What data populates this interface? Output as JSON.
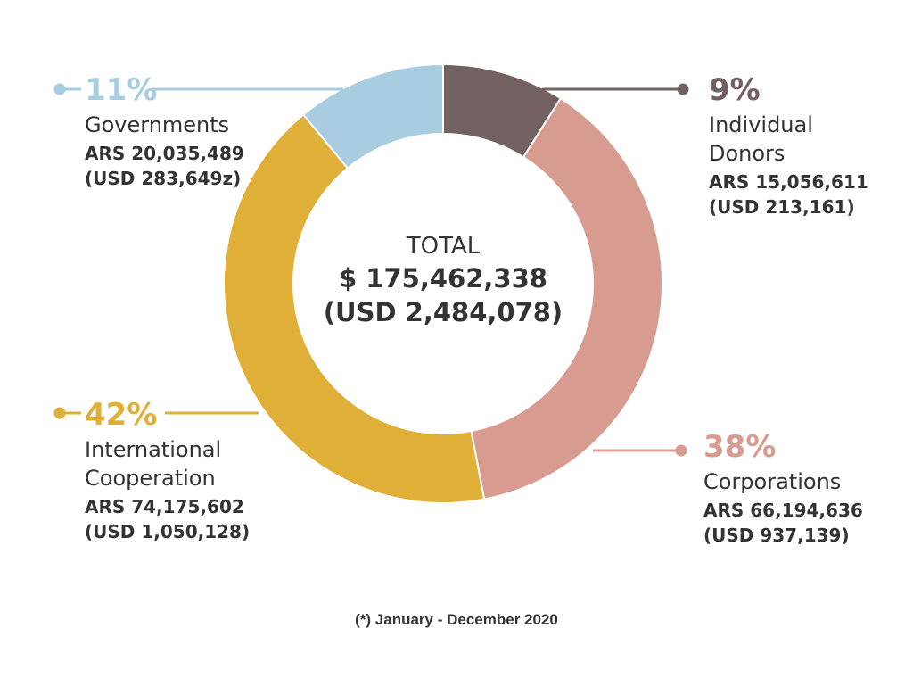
{
  "chart_data": {
    "type": "pie",
    "center": {
      "label": "TOTAL",
      "value": "$ 175,462,338",
      "value_usd": "(USD 2,484,078)"
    },
    "slices": [
      {
        "percent_label": "9%",
        "percent": 9,
        "category_lines": [
          "Individual",
          "Donors"
        ],
        "ars": "ARS 15,056,611",
        "usd": "(USD 213,161)",
        "color": "#736060"
      },
      {
        "percent_label": "38%",
        "percent": 38,
        "category_lines": [
          "Corporations"
        ],
        "ars": "ARS 66,194,636",
        "usd": "(USD 937,139)",
        "color": "#d89b90"
      },
      {
        "percent_label": "42%",
        "percent": 42,
        "category_lines": [
          "International",
          "Cooperation"
        ],
        "ars": "ARS 74,175,602",
        "usd": "(USD 1,050,128)",
        "color": "#e0af38"
      },
      {
        "percent_label": "11%",
        "percent": 11,
        "category_lines": [
          "Governments"
        ],
        "ars": "ARS 20,035,489",
        "usd": "(USD 283,649z)",
        "color": "#a9cde0"
      }
    ],
    "footnote": "(*) January - December 2020"
  }
}
